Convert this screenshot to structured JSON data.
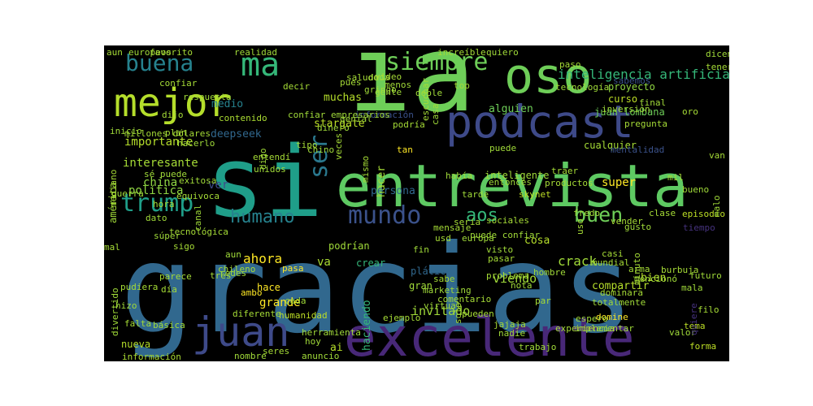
{
  "wordcloud": {
    "palette": {
      "yellow": "#fde725",
      "lime": "#a0da39",
      "green": "#4ac16d",
      "teal": "#1fa187",
      "cyan": "#277f8e",
      "blue": "#365c8d",
      "indigo": "#46327e",
      "purple": "#440154"
    },
    "words": [
      {
        "text": "gracias",
        "color": "#31688e"
      },
      {
        "text": "si",
        "color": "#1f9e89"
      },
      {
        "text": "ia",
        "color": "#6ece58"
      },
      {
        "text": "entrevista",
        "color": "#5ec962"
      },
      {
        "text": "excelente",
        "color": "#482878"
      },
      {
        "text": "podcast",
        "color": "#3e4a89"
      },
      {
        "text": "mejor",
        "color": "#b5de2b"
      },
      {
        "text": "oso",
        "color": "#6ece58"
      },
      {
        "text": "ma",
        "color": "#35b779"
      },
      {
        "text": "buena",
        "color": "#26828e"
      },
      {
        "text": "siempre",
        "color": "#6ece58"
      },
      {
        "text": "juan",
        "color": "#3e4a89"
      },
      {
        "text": "mundo",
        "color": "#3b528b"
      },
      {
        "text": "trump",
        "color": "#1f9e89"
      },
      {
        "text": "humano",
        "color": "#26828e"
      },
      {
        "text": "buen",
        "color": "#6ece58"
      },
      {
        "text": "aos",
        "color": "#35b779"
      },
      {
        "text": "ser",
        "color": "#2a788e"
      },
      {
        "text": "inteligencia artificial",
        "color": "#35b779"
      },
      {
        "text": "proyecto",
        "color": "#90d743"
      },
      {
        "text": "curso",
        "color": "#bddf26"
      },
      {
        "text": "juan lombana",
        "color": "#6ece58"
      },
      {
        "text": "muchas",
        "color": "#b5de2b"
      },
      {
        "text": "pues",
        "color": "#a5db36"
      },
      {
        "text": "alguien",
        "color": "#6ece58"
      },
      {
        "text": "medio",
        "color": "#26828e"
      },
      {
        "text": "contenido",
        "color": "#aadc32"
      },
      {
        "text": "stargate",
        "color": "#bddf26"
      },
      {
        "text": "deepseek",
        "color": "#31688e"
      },
      {
        "text": "importante",
        "color": "#b5de2b"
      },
      {
        "text": "interesante",
        "color": "#a5db36"
      },
      {
        "text": "china",
        "color": "#90d743"
      },
      {
        "text": "política",
        "color": "#90d743"
      },
      {
        "text": "ver",
        "color": "#3e4a89"
      },
      {
        "text": "hacer",
        "color": "#a5db36"
      },
      {
        "text": "mismo",
        "color": "#a5db36"
      },
      {
        "text": "persona",
        "color": "#31688e"
      },
      {
        "text": "inteligente",
        "color": "#a0da39"
      },
      {
        "text": "puede",
        "color": "#a0da39"
      },
      {
        "text": "cualquier",
        "color": "#a5db36"
      },
      {
        "text": "super",
        "color": "#fde725"
      },
      {
        "text": "skynet",
        "color": "#bddf26"
      },
      {
        "text": "mil",
        "color": "#a5db36"
      },
      {
        "text": "bueno",
        "color": "#a0da39"
      },
      {
        "text": "episodio",
        "color": "#bddf26"
      },
      {
        "text": "tiempo",
        "color": "#46327e"
      },
      {
        "text": "ahora",
        "color": "#fde725"
      },
      {
        "text": "pasa",
        "color": "#fde725"
      },
      {
        "text": "va",
        "color": "#aadc32"
      },
      {
        "text": "hace",
        "color": "#fde725"
      },
      {
        "text": "grande",
        "color": "#fde725"
      },
      {
        "text": "crear",
        "color": "#35b779"
      },
      {
        "text": "gran",
        "color": "#a0da39"
      },
      {
        "text": "plática",
        "color": "#31688e"
      },
      {
        "text": "crack",
        "color": "#a0da39"
      },
      {
        "text": "bien",
        "color": "#b5de2b"
      },
      {
        "text": "viendo",
        "color": "#a0da39"
      },
      {
        "text": "compartir",
        "color": "#b5de2b"
      },
      {
        "text": "pasar",
        "color": "#a5db36"
      },
      {
        "text": "totalmente",
        "color": "#a0da39"
      },
      {
        "text": "invitado",
        "color": "#a0da39"
      },
      {
        "text": "haciendo",
        "color": "#35b779"
      },
      {
        "text": "solo",
        "color": "#a5db36"
      },
      {
        "text": "cosa",
        "color": "#b5de2b"
      },
      {
        "text": "humanidad",
        "color": "#bddf26"
      },
      {
        "text": "herramienta",
        "color": "#a0da39"
      },
      {
        "text": "ejemplo",
        "color": "#a5db36"
      },
      {
        "text": "diferente",
        "color": "#a5db36"
      },
      {
        "text": "ambo",
        "color": "#fde725"
      },
      {
        "text": "nueva",
        "color": "#b5de2b"
      },
      {
        "text": "ai",
        "color": "#b5de2b"
      },
      {
        "text": "información",
        "color": "#aadc32"
      },
      {
        "text": "nombre",
        "color": "#a0da39"
      },
      {
        "text": "anuncio",
        "color": "#a0da39"
      },
      {
        "text": "tema",
        "color": "#bddf26"
      },
      {
        "text": "forma",
        "color": "#bddf26"
      },
      {
        "text": "valor",
        "color": "#a0da39"
      },
      {
        "text": "domine",
        "color": "#fde725"
      },
      {
        "text": "espero",
        "color": "#a0da39"
      },
      {
        "text": "implementar",
        "color": "#a0da39"
      },
      {
        "text": "filo",
        "color": "#a5db36"
      },
      {
        "text": "quiere",
        "color": "#46327e"
      },
      {
        "text": "mala",
        "color": "#a0da39"
      },
      {
        "text": "futuro",
        "color": "#a0da39"
      },
      {
        "text": "burbuja",
        "color": "#a5db36"
      },
      {
        "text": "sé puede",
        "color": "#a0da39"
      },
      {
        "text": "guerra",
        "color": "#a0da39"
      },
      {
        "text": "hora",
        "color": "#a5db36"
      },
      {
        "text": "dato",
        "color": "#a0da39"
      },
      {
        "text": "tecnológica",
        "color": "#a5db36"
      },
      {
        "text": "súper",
        "color": "#a0da39"
      },
      {
        "text": "sigo",
        "color": "#a5db36"
      },
      {
        "text": "mal",
        "color": "#a5db36"
      },
      {
        "text": "unidos",
        "color": "#a0da39"
      },
      {
        "text": "podrían",
        "color": "#a0da39"
      },
      {
        "text": "sociales",
        "color": "#a5db36"
      },
      {
        "text": "puede confiar",
        "color": "#a0da39"
      },
      {
        "text": "vender",
        "color": "#a5db36"
      },
      {
        "text": "saludo",
        "color": "#a5db36"
      },
      {
        "text": "duda",
        "color": "#a0da39"
      },
      {
        "text": "gringo",
        "color": "#a0da39"
      },
      {
        "text": "tecnología",
        "color": "#a0da39"
      },
      {
        "text": "inversión",
        "color": "#a0da39"
      },
      {
        "text": "pregunta",
        "color": "#a5db36"
      },
      {
        "text": "mentalidad",
        "color": "#3b528b"
      },
      {
        "text": "final",
        "color": "#a0da39"
      },
      {
        "text": "oro",
        "color": "#a5db36"
      },
      {
        "text": "tener",
        "color": "#a5db36"
      },
      {
        "text": "dicen",
        "color": "#a0da39"
      },
      {
        "text": "sabemos",
        "color": "#3b528b"
      },
      {
        "text": "paso",
        "color": "#a5db36"
      },
      {
        "text": "van necesitar",
        "color": "#a5db36"
      },
      {
        "text": "malo",
        "color": "#a0da39"
      },
      {
        "text": "clase",
        "color": "#a5db36"
      },
      {
        "text": "gusto",
        "color": "#a0da39"
      },
      {
        "text": "entonces",
        "color": "#a0da39"
      },
      {
        "text": "traer",
        "color": "#a5db36"
      },
      {
        "text": "productos",
        "color": "#a5db36"
      },
      {
        "text": "fredo",
        "color": "#a0da39"
      },
      {
        "text": "uso",
        "color": "#a5db36"
      },
      {
        "text": "tarde",
        "color": "#a0da39"
      },
      {
        "text": "tan",
        "color": "#fde725"
      },
      {
        "text": "había",
        "color": "#a0da39"
      },
      {
        "text": "sería",
        "color": "#a5db36"
      },
      {
        "text": "europa",
        "color": "#a0da39"
      },
      {
        "text": "mensaje",
        "color": "#a5db36"
      },
      {
        "text": "usd",
        "color": "#a5db36"
      },
      {
        "text": "aun",
        "color": "#a0da39"
      },
      {
        "text": "chileno",
        "color": "#a5db36"
      },
      {
        "text": "visto",
        "color": "#a0da39"
      },
      {
        "text": "fin",
        "color": "#a0da39"
      },
      {
        "text": "problema",
        "color": "#a5db36"
      },
      {
        "text": "hombre",
        "color": "#a0da39"
      },
      {
        "text": "arma",
        "color": "#a5db36"
      },
      {
        "text": "casi",
        "color": "#a5db36"
      },
      {
        "text": "mencionó",
        "color": "#a0da39"
      },
      {
        "text": "minuto",
        "color": "#a5db36"
      },
      {
        "text": "mundial",
        "color": "#a5db36"
      },
      {
        "text": "marketing",
        "color": "#a0da39"
      },
      {
        "text": "sabe",
        "color": "#a5db36"
      },
      {
        "text": "pueden",
        "color": "#a5db36"
      },
      {
        "text": "nota",
        "color": "#a0da39"
      },
      {
        "text": "dominara",
        "color": "#a5db36"
      },
      {
        "text": "virtual",
        "color": "#a0da39"
      },
      {
        "text": "comentario",
        "color": "#a5db36"
      },
      {
        "text": "par",
        "color": "#a5db36"
      },
      {
        "text": "nadie",
        "color": "#a0da39"
      },
      {
        "text": "experiencia",
        "color": "#a5db36"
      },
      {
        "text": "trabajo",
        "color": "#a0da39"
      },
      {
        "text": "jajaja",
        "color": "#a5db36"
      },
      {
        "text": "hoy",
        "color": "#a0da39"
      },
      {
        "text": "seres",
        "color": "#a5db36"
      },
      {
        "text": "básica",
        "color": "#a0da39"
      },
      {
        "text": "falta",
        "color": "#a5db36"
      },
      {
        "text": "hizo",
        "color": "#a0da39"
      },
      {
        "text": "día",
        "color": "#a5db36"
      },
      {
        "text": "redes",
        "color": "#a0da39"
      },
      {
        "text": "parece",
        "color": "#a5db36"
      },
      {
        "text": "tres",
        "color": "#a5db36"
      },
      {
        "text": "cada",
        "color": "#a0da39"
      },
      {
        "text": "pudiera",
        "color": "#a5db36"
      },
      {
        "text": "divertido",
        "color": "#a0da39"
      },
      {
        "text": "aun",
        "color": "#a5db36"
      },
      {
        "text": "europeos",
        "color": "#a0da39"
      },
      {
        "text": "favorito",
        "color": "#a5db36"
      },
      {
        "text": "realidad",
        "color": "#a0da39"
      },
      {
        "text": "increíble",
        "color": "#a5db36"
      },
      {
        "text": "quiero",
        "color": "#a0da39"
      },
      {
        "text": "video",
        "color": "#a5db36"
      },
      {
        "text": "doble",
        "color": "#a0da39"
      },
      {
        "text": "menos",
        "color": "#a0da39"
      },
      {
        "text": "top",
        "color": "#a5db36"
      },
      {
        "text": "gente",
        "color": "#a0da39"
      },
      {
        "text": "escuchar",
        "color": "#a5db36"
      },
      {
        "text": "casa",
        "color": "#a0da39"
      },
      {
        "text": "podría",
        "color": "#a5db36"
      },
      {
        "text": "dinero",
        "color": "#a0da39"
      },
      {
        "text": "tipo",
        "color": "#a5db36"
      },
      {
        "text": "digo",
        "color": "#a0da39"
      },
      {
        "text": "entendí",
        "color": "#a5db36"
      },
      {
        "text": "chino",
        "color": "#a0da39"
      },
      {
        "text": "veces",
        "color": "#a5db36"
      },
      {
        "text": "información",
        "color": "#3b528b"
      },
      {
        "text": "genial",
        "color": "#a0da39"
      },
      {
        "text": "confiar empresarios",
        "color": "#a0da39"
      },
      {
        "text": "confiar",
        "color": "#a5db36"
      },
      {
        "text": "inicio",
        "color": "#a0da39"
      },
      {
        "text": "dijo",
        "color": "#a5db36"
      },
      {
        "text": "decir",
        "color": "#a5db36"
      },
      {
        "text": "respuesta",
        "color": "#a0da39"
      },
      {
        "text": "plan",
        "color": "#a5db36"
      },
      {
        "text": "hacerlo",
        "color": "#a0da39"
      },
      {
        "text": "millones dólares",
        "color": "#a5db36"
      },
      {
        "text": "américa",
        "color": "#a0da39"
      },
      {
        "text": "mediano",
        "color": "#a5db36"
      },
      {
        "text": "exitosa",
        "color": "#a0da39"
      },
      {
        "text": "equivoca",
        "color": "#a5db36"
      },
      {
        "text": "canal",
        "color": "#a0da39"
      }
    ]
  }
}
